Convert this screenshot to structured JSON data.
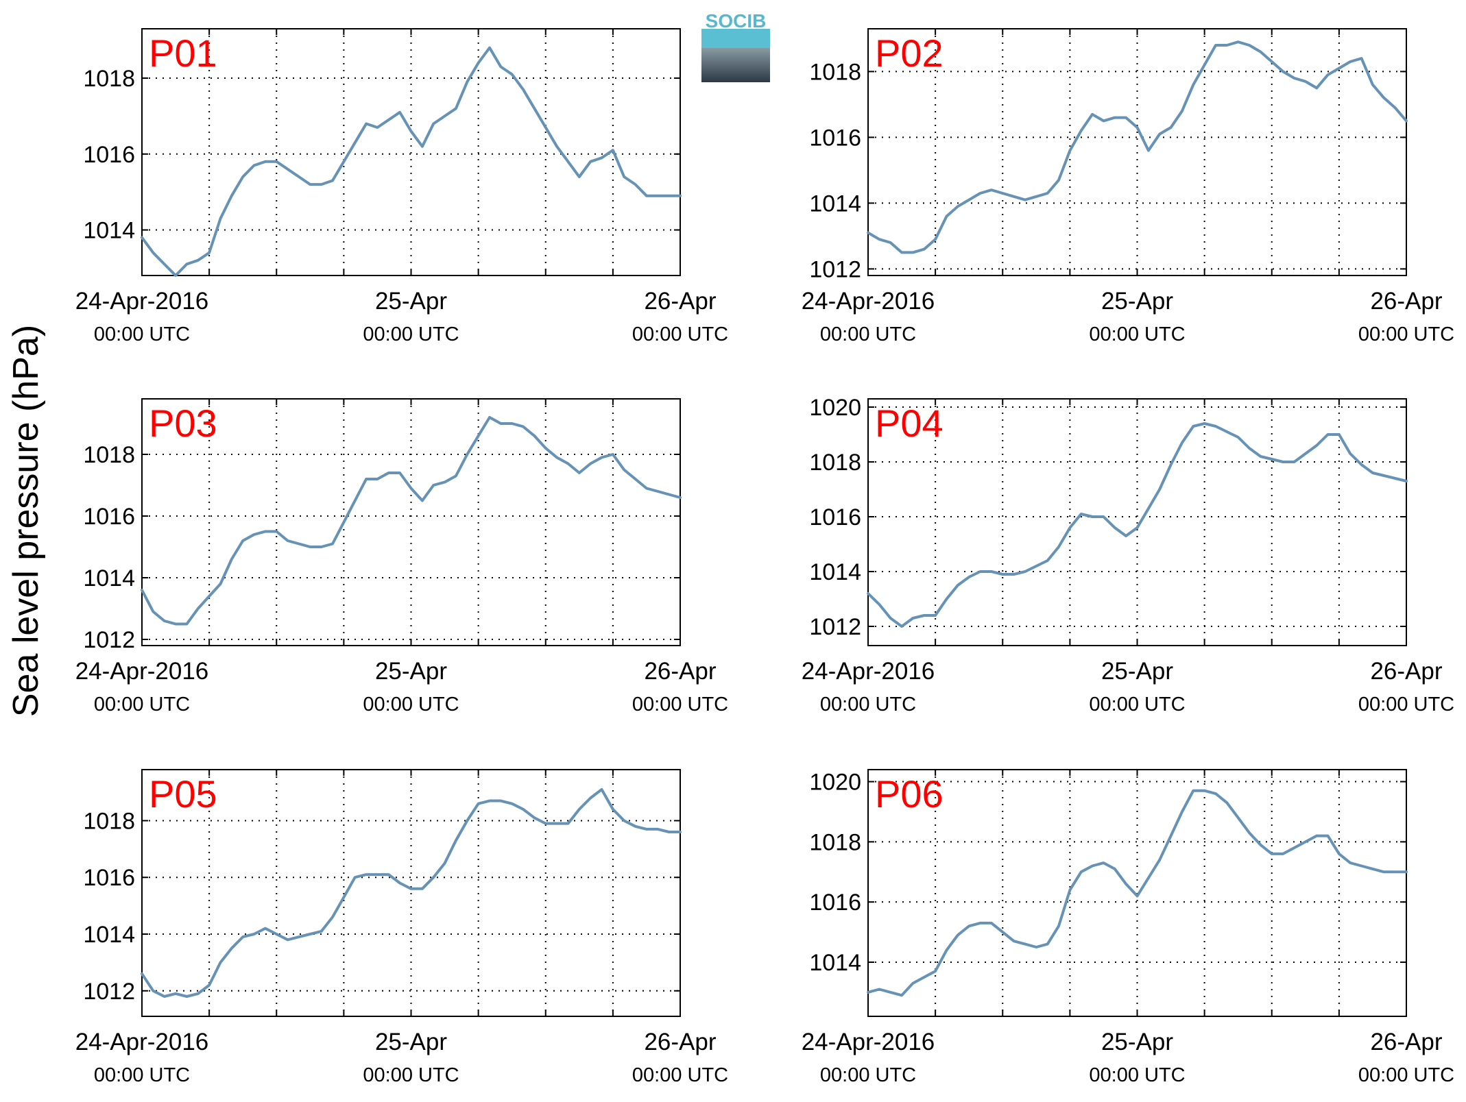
{
  "ylabel": "Sea level pressure (hPa)",
  "logo": {
    "text": "SOCIB",
    "top_color": "#55b8cf",
    "bottom_color": "#2b3945"
  },
  "colors": {
    "line": "#6592b5",
    "label": "#ff0000"
  },
  "x_ticks": [
    {
      "date": "24-Apr-2016",
      "time": "00:00 UTC"
    },
    {
      "date": "25-Apr",
      "time": "00:00 UTC"
    },
    {
      "date": "26-Apr",
      "time": "00:00 UTC"
    }
  ],
  "chart_data": [
    {
      "type": "line",
      "name": "P01",
      "xlim": [
        "2016-04-24 00:00",
        "2016-04-26 00:00"
      ],
      "ylim": [
        1012.8,
        1019.3
      ],
      "yticks": [
        1014,
        1016,
        1018
      ],
      "grid": true,
      "x_hours": [
        0,
        1,
        2,
        3,
        4,
        5,
        6,
        7,
        8,
        9,
        10,
        11,
        12,
        13,
        14,
        15,
        16,
        17,
        18,
        19,
        20,
        21,
        22,
        23,
        24,
        25,
        26,
        27,
        28,
        29,
        30,
        31,
        32,
        33,
        34,
        35,
        36,
        37,
        38,
        39,
        40,
        41,
        42,
        43,
        44,
        45,
        46,
        47,
        48
      ],
      "values": [
        1013.8,
        1013.4,
        1013.1,
        1012.8,
        1013.1,
        1013.2,
        1013.4,
        1014.3,
        1014.9,
        1015.4,
        1015.7,
        1015.8,
        1015.8,
        1015.6,
        1015.4,
        1015.2,
        1015.2,
        1015.3,
        1015.8,
        1016.3,
        1016.8,
        1016.7,
        1016.9,
        1017.1,
        1016.6,
        1016.2,
        1016.8,
        1017.0,
        1017.2,
        1017.9,
        1018.4,
        1018.8,
        1018.3,
        1018.1,
        1017.7,
        1017.2,
        1016.7,
        1016.2,
        1015.8,
        1015.4,
        1015.8,
        1015.9,
        1016.1,
        1015.4,
        1015.2,
        1014.9,
        1014.9,
        1014.9,
        1014.9
      ]
    },
    {
      "type": "line",
      "name": "P02",
      "xlim": [
        "2016-04-24 00:00",
        "2016-04-26 00:00"
      ],
      "ylim": [
        1011.8,
        1019.3
      ],
      "yticks": [
        1012,
        1014,
        1016,
        1018
      ],
      "grid": true,
      "x_hours": [
        0,
        1,
        2,
        3,
        4,
        5,
        6,
        7,
        8,
        9,
        10,
        11,
        12,
        13,
        14,
        15,
        16,
        17,
        18,
        19,
        20,
        21,
        22,
        23,
        24,
        25,
        26,
        27,
        28,
        29,
        30,
        31,
        32,
        33,
        34,
        35,
        36,
        37,
        38,
        39,
        40,
        41,
        42,
        43,
        44,
        45,
        46,
        47,
        48
      ],
      "values": [
        1013.1,
        1012.9,
        1012.8,
        1012.5,
        1012.5,
        1012.6,
        1012.9,
        1013.6,
        1013.9,
        1014.1,
        1014.3,
        1014.4,
        1014.3,
        1014.2,
        1014.1,
        1014.2,
        1014.3,
        1014.7,
        1015.6,
        1016.2,
        1016.7,
        1016.5,
        1016.6,
        1016.6,
        1016.3,
        1015.6,
        1016.1,
        1016.3,
        1016.8,
        1017.6,
        1018.2,
        1018.8,
        1018.8,
        1018.9,
        1018.8,
        1018.6,
        1018.3,
        1018.0,
        1017.8,
        1017.7,
        1017.5,
        1017.9,
        1018.1,
        1018.3,
        1018.4,
        1017.6,
        1017.2,
        1016.9,
        1016.5
      ]
    },
    {
      "type": "line",
      "name": "P03",
      "xlim": [
        "2016-04-24 00:00",
        "2016-04-26 00:00"
      ],
      "ylim": [
        1011.8,
        1019.8
      ],
      "yticks": [
        1012,
        1014,
        1016,
        1018
      ],
      "grid": true,
      "x_hours": [
        0,
        1,
        2,
        3,
        4,
        5,
        6,
        7,
        8,
        9,
        10,
        11,
        12,
        13,
        14,
        15,
        16,
        17,
        18,
        19,
        20,
        21,
        22,
        23,
        24,
        25,
        26,
        27,
        28,
        29,
        30,
        31,
        32,
        33,
        34,
        35,
        36,
        37,
        38,
        39,
        40,
        41,
        42,
        43,
        44,
        45,
        46,
        47,
        48
      ],
      "values": [
        1013.6,
        1012.9,
        1012.6,
        1012.5,
        1012.5,
        1013.0,
        1013.4,
        1013.8,
        1014.6,
        1015.2,
        1015.4,
        1015.5,
        1015.5,
        1015.2,
        1015.1,
        1015.0,
        1015.0,
        1015.1,
        1015.8,
        1016.5,
        1017.2,
        1017.2,
        1017.4,
        1017.4,
        1016.9,
        1016.5,
        1017.0,
        1017.1,
        1017.3,
        1018.0,
        1018.6,
        1019.2,
        1019.0,
        1019.0,
        1018.9,
        1018.6,
        1018.2,
        1017.9,
        1017.7,
        1017.4,
        1017.7,
        1017.9,
        1018.0,
        1017.5,
        1017.2,
        1016.9,
        1016.8,
        1016.7,
        1016.6
      ]
    },
    {
      "type": "line",
      "name": "P04",
      "xlim": [
        "2016-04-24 00:00",
        "2016-04-26 00:00"
      ],
      "ylim": [
        1011.3,
        1020.3
      ],
      "yticks": [
        1012,
        1014,
        1016,
        1018,
        1020
      ],
      "grid": true,
      "x_hours": [
        0,
        1,
        2,
        3,
        4,
        5,
        6,
        7,
        8,
        9,
        10,
        11,
        12,
        13,
        14,
        15,
        16,
        17,
        18,
        19,
        20,
        21,
        22,
        23,
        24,
        25,
        26,
        27,
        28,
        29,
        30,
        31,
        32,
        33,
        34,
        35,
        36,
        37,
        38,
        39,
        40,
        41,
        42,
        43,
        44,
        45,
        46,
        47,
        48
      ],
      "values": [
        1013.2,
        1012.8,
        1012.3,
        1012.0,
        1012.3,
        1012.4,
        1012.4,
        1013.0,
        1013.5,
        1013.8,
        1014.0,
        1014.0,
        1013.9,
        1013.9,
        1014.0,
        1014.2,
        1014.4,
        1014.9,
        1015.6,
        1016.1,
        1016.0,
        1016.0,
        1015.6,
        1015.3,
        1015.6,
        1016.3,
        1017.0,
        1017.9,
        1018.7,
        1019.3,
        1019.4,
        1019.3,
        1019.1,
        1018.9,
        1018.5,
        1018.2,
        1018.1,
        1018.0,
        1018.0,
        1018.3,
        1018.6,
        1019.0,
        1019.0,
        1018.3,
        1017.9,
        1017.6,
        1017.5,
        1017.4,
        1017.3
      ]
    },
    {
      "type": "line",
      "name": "P05",
      "xlim": [
        "2016-04-24 00:00",
        "2016-04-26 00:00"
      ],
      "ylim": [
        1011.1,
        1019.8
      ],
      "yticks": [
        1012,
        1014,
        1016,
        1018
      ],
      "grid": true,
      "x_hours": [
        0,
        1,
        2,
        3,
        4,
        5,
        6,
        7,
        8,
        9,
        10,
        11,
        12,
        13,
        14,
        15,
        16,
        17,
        18,
        19,
        20,
        21,
        22,
        23,
        24,
        25,
        26,
        27,
        28,
        29,
        30,
        31,
        32,
        33,
        34,
        35,
        36,
        37,
        38,
        39,
        40,
        41,
        42,
        43,
        44,
        45,
        46,
        47,
        48
      ],
      "values": [
        1012.6,
        1012.0,
        1011.8,
        1011.9,
        1011.8,
        1011.9,
        1012.2,
        1013.0,
        1013.5,
        1013.9,
        1014.0,
        1014.2,
        1014.0,
        1013.8,
        1013.9,
        1014.0,
        1014.1,
        1014.6,
        1015.3,
        1016.0,
        1016.1,
        1016.1,
        1016.1,
        1015.8,
        1015.6,
        1015.6,
        1016.0,
        1016.5,
        1017.3,
        1018.0,
        1018.6,
        1018.7,
        1018.7,
        1018.6,
        1018.4,
        1018.1,
        1017.9,
        1017.9,
        1017.9,
        1018.4,
        1018.8,
        1019.1,
        1018.4,
        1018.0,
        1017.8,
        1017.7,
        1017.7,
        1017.6,
        1017.6
      ]
    },
    {
      "type": "line",
      "name": "P06",
      "xlim": [
        "2016-04-24 00:00",
        "2016-04-26 00:00"
      ],
      "ylim": [
        1012.2,
        1020.4
      ],
      "yticks": [
        1014,
        1016,
        1018,
        1020
      ],
      "grid": true,
      "x_hours": [
        0,
        1,
        2,
        3,
        4,
        5,
        6,
        7,
        8,
        9,
        10,
        11,
        12,
        13,
        14,
        15,
        16,
        17,
        18,
        19,
        20,
        21,
        22,
        23,
        24,
        25,
        26,
        27,
        28,
        29,
        30,
        31,
        32,
        33,
        34,
        35,
        36,
        37,
        38,
        39,
        40,
        41,
        42,
        43,
        44,
        45,
        46,
        47,
        48
      ],
      "values": [
        1013.0,
        1013.1,
        1013.0,
        1012.9,
        1013.3,
        1013.5,
        1013.7,
        1014.4,
        1014.9,
        1015.2,
        1015.3,
        1015.3,
        1015.0,
        1014.7,
        1014.6,
        1014.5,
        1014.6,
        1015.2,
        1016.4,
        1017.0,
        1017.2,
        1017.3,
        1017.1,
        1016.6,
        1016.2,
        1016.8,
        1017.4,
        1018.2,
        1019.0,
        1019.7,
        1019.7,
        1019.6,
        1019.3,
        1018.8,
        1018.3,
        1017.9,
        1017.6,
        1017.6,
        1017.8,
        1018.0,
        1018.2,
        1018.2,
        1017.6,
        1017.3,
        1017.2,
        1017.1,
        1017.0,
        1017.0,
        1017.0
      ]
    }
  ]
}
